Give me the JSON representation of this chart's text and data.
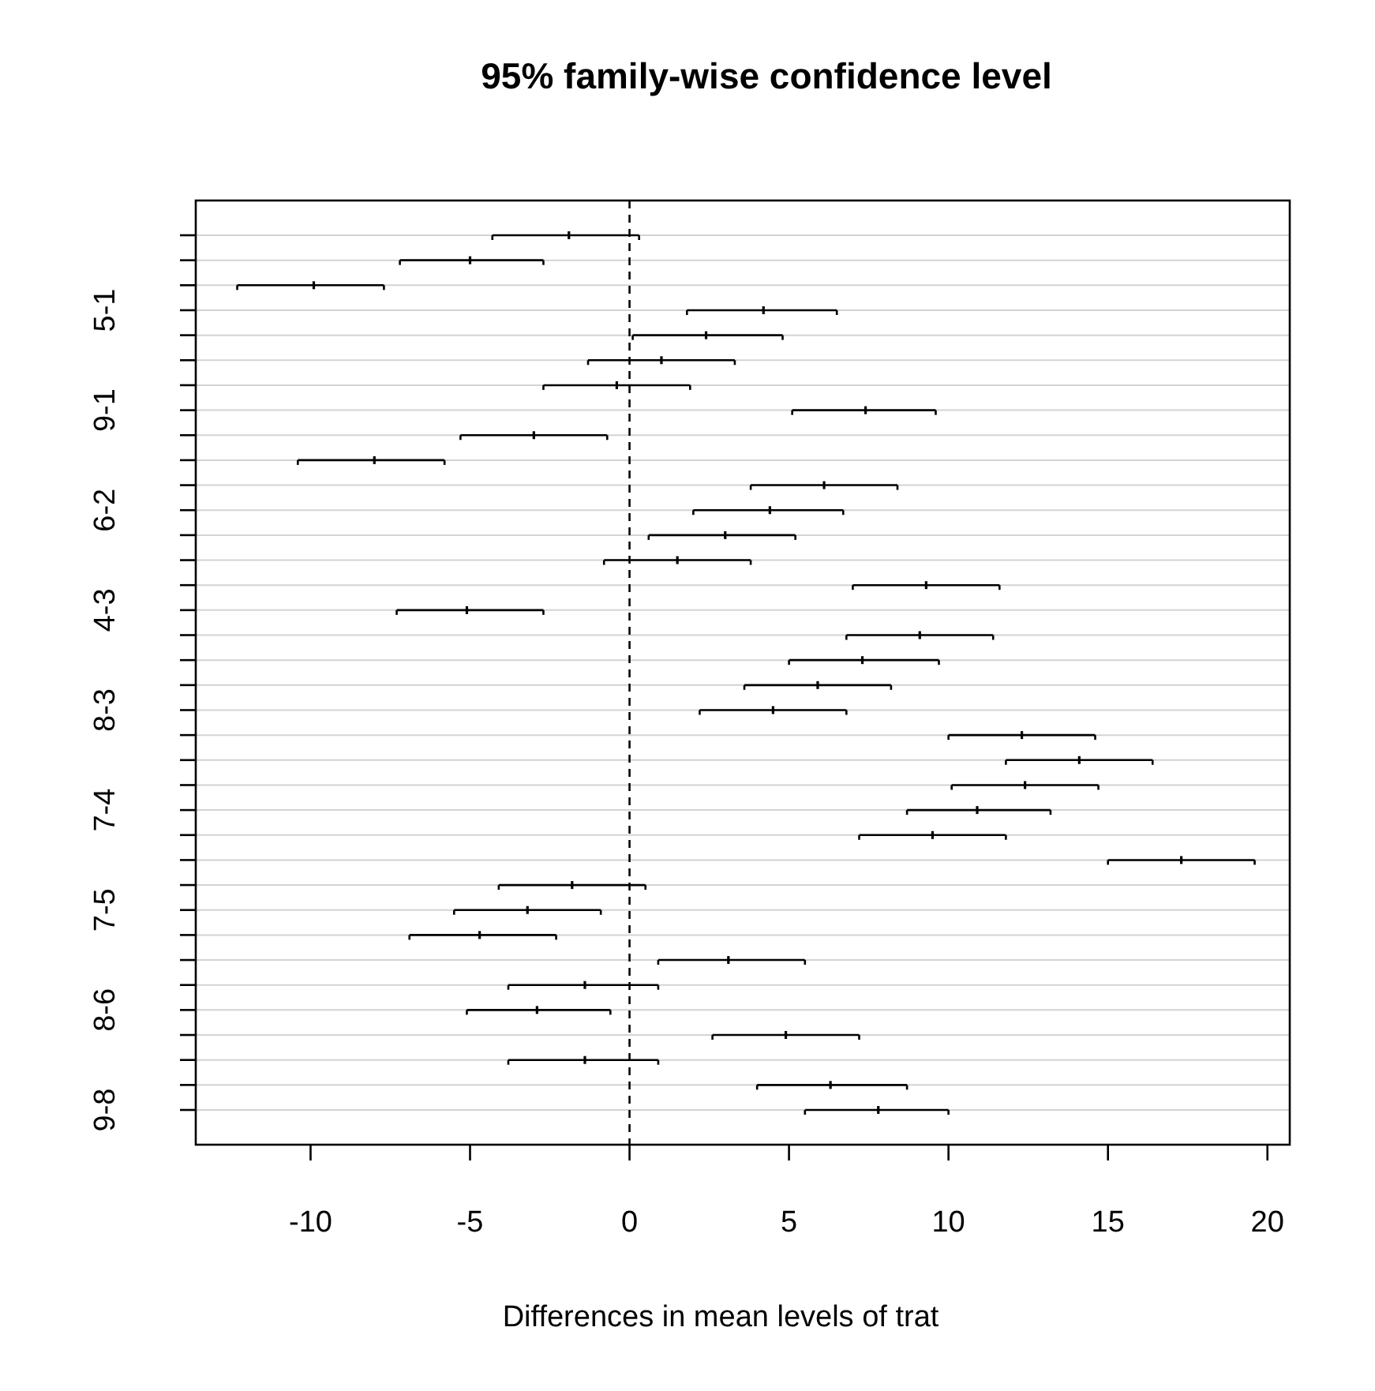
{
  "chart_data": {
    "type": "scatter",
    "orientation": "horizontal",
    "title": "95% family-wise confidence level",
    "xlabel": "Differences in mean levels of trat",
    "categories": [
      null,
      null,
      null,
      "5-1",
      null,
      null,
      null,
      "9-1",
      null,
      null,
      null,
      "6-2",
      null,
      null,
      null,
      "4-3",
      null,
      null,
      null,
      "8-3",
      null,
      null,
      null,
      "7-4",
      null,
      null,
      null,
      "7-5",
      null,
      null,
      null,
      "8-6",
      null,
      null,
      null,
      "9-8"
    ],
    "values": [
      -1.9,
      -5.0,
      -9.9,
      4.2,
      2.4,
      1.0,
      -0.4,
      7.4,
      -3.0,
      -8.0,
      6.1,
      4.4,
      3.0,
      1.5,
      9.3,
      -5.1,
      9.1,
      7.3,
      5.9,
      4.5,
      12.3,
      14.1,
      12.4,
      10.9,
      9.5,
      17.3,
      -1.8,
      -3.2,
      -4.7,
      3.1,
      -1.4,
      -2.9,
      4.9,
      -1.4,
      6.3,
      7.8
    ],
    "errors": [
      [
        -4.3,
        0.3
      ],
      [
        -7.2,
        -2.7
      ],
      [
        -12.3,
        -7.7
      ],
      [
        1.8,
        6.5
      ],
      [
        0.1,
        4.8
      ],
      [
        -1.3,
        3.3
      ],
      [
        -2.7,
        1.9
      ],
      [
        5.1,
        9.6
      ],
      [
        -5.3,
        -0.7
      ],
      [
        -10.4,
        -5.8
      ],
      [
        3.8,
        8.4
      ],
      [
        2.0,
        6.7
      ],
      [
        0.6,
        5.2
      ],
      [
        -0.8,
        3.8
      ],
      [
        7.0,
        11.6
      ],
      [
        -7.3,
        -2.7
      ],
      [
        6.8,
        11.4
      ],
      [
        5.0,
        9.7
      ],
      [
        3.6,
        8.2
      ],
      [
        2.2,
        6.8
      ],
      [
        10.0,
        14.6
      ],
      [
        11.8,
        16.4
      ],
      [
        10.1,
        14.7
      ],
      [
        8.7,
        13.2
      ],
      [
        7.2,
        11.8
      ],
      [
        15.0,
        19.6
      ],
      [
        -4.1,
        0.5
      ],
      [
        -5.5,
        -0.9
      ],
      [
        -6.9,
        -2.3
      ],
      [
        0.9,
        5.5
      ],
      [
        -3.8,
        0.9
      ],
      [
        -5.1,
        -0.6
      ],
      [
        2.6,
        7.2
      ],
      [
        -3.8,
        0.9
      ],
      [
        4.0,
        8.7
      ],
      [
        5.5,
        10.0
      ]
    ],
    "color": "#000000",
    "xlim": [
      -13.6,
      20.7
    ],
    "xticks": [
      -10,
      -5,
      0,
      5,
      10,
      15,
      20
    ],
    "grid": "y",
    "ref_lines": [
      {
        "axis": "x",
        "value": 0,
        "line_style": "dashed",
        "color": "#000000"
      }
    ]
  }
}
